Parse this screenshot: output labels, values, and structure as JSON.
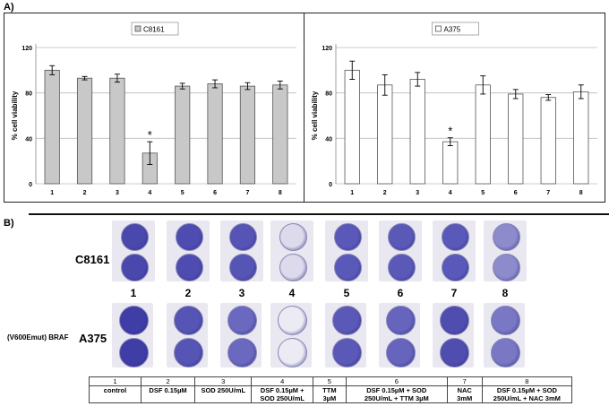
{
  "panel_a_label": "A)",
  "panel_b_label": "B)",
  "chart_data": [
    {
      "type": "bar",
      "legend": "C8161",
      "ylabel": "% cell viability",
      "categories": [
        "1",
        "2",
        "3",
        "4",
        "5",
        "6",
        "7",
        "8"
      ],
      "values": [
        100,
        93,
        93,
        27,
        86,
        88,
        86,
        87
      ],
      "errors": [
        4,
        1.5,
        3.5,
        10,
        2.5,
        3.5,
        3,
        3.5
      ],
      "ylim": [
        0,
        120
      ],
      "yticks": [
        "0",
        "40",
        "80",
        "120"
      ],
      "significance": {
        "index": 3,
        "label": "*"
      },
      "bar_color": "#c8c8c8"
    },
    {
      "type": "bar",
      "legend": "A375",
      "ylabel": "% cell viability",
      "categories": [
        "1",
        "2",
        "3",
        "4",
        "5",
        "6",
        "7",
        "8"
      ],
      "values": [
        100,
        87,
        92,
        37,
        87,
        79,
        76,
        81
      ],
      "errors": [
        8,
        9,
        6,
        3.5,
        8,
        4,
        2.5,
        6
      ],
      "ylim": [
        0,
        120
      ],
      "yticks": [
        "0",
        "40",
        "80",
        "120"
      ],
      "significance": {
        "index": 3,
        "label": "*"
      },
      "bar_color": "#ffffff"
    }
  ],
  "row_c8161": "C8161",
  "row_a375": "A375",
  "row_a375_prefix": "(V600Emut) BRAF",
  "lane_numbers": [
    "1",
    "2",
    "3",
    "4",
    "5",
    "6",
    "7",
    "8"
  ],
  "condition_table": {
    "numbers": [
      "1",
      "2",
      "3",
      "4",
      "5",
      "6",
      "7",
      "8"
    ],
    "line1": [
      "control",
      "DSF 0.15µM",
      "SOD 250U/mL",
      "DSF 0.15µM +",
      "TTM",
      "DSF 0.15µM + SOD",
      "NAC",
      "DSF 0.15µM + SOD"
    ],
    "line2": [
      "",
      "",
      "",
      "SOD 250U/mL",
      "3µM",
      "250U/mL + TTM 3µM",
      "3mM",
      "250U/mL + NAC 3mM"
    ]
  },
  "colors": {
    "stain_dark": "#3b3aa0",
    "stain_mid": "#5a58b8",
    "stain_light": "#a9a7d6",
    "plate_bg": "#e9e8f0"
  }
}
